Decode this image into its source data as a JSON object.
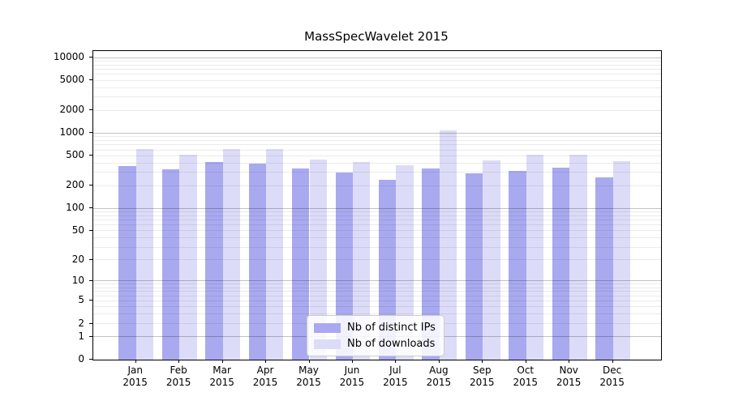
{
  "chart_data": {
    "type": "bar",
    "title": "MassSpecWavelet 2015",
    "y_scale": "log10(value+1)",
    "grid": true,
    "legend_position": "bottom-center-inside",
    "categories": [
      "Jan",
      "Feb",
      "Mar",
      "Apr",
      "May",
      "Jun",
      "Jul",
      "Aug",
      "Sep",
      "Oct",
      "Nov",
      "Dec"
    ],
    "category_year": "2015",
    "y_ticks": [
      0,
      1,
      2,
      5,
      10,
      20,
      50,
      100,
      200,
      500,
      1000,
      2000,
      5000,
      10000
    ],
    "ylim": [
      0,
      12000
    ],
    "series": [
      {
        "name": "Nb of distinct IPs",
        "color": "#a9a9f0",
        "values": [
          364,
          335,
          412,
          395,
          340,
          300,
          238,
          338,
          290,
          314,
          349,
          258
        ]
      },
      {
        "name": "Nb of downloads",
        "color": "#dcdcf8",
        "values": [
          608,
          519,
          610,
          608,
          450,
          410,
          375,
          1100,
          440,
          523,
          514,
          425
        ]
      }
    ]
  }
}
